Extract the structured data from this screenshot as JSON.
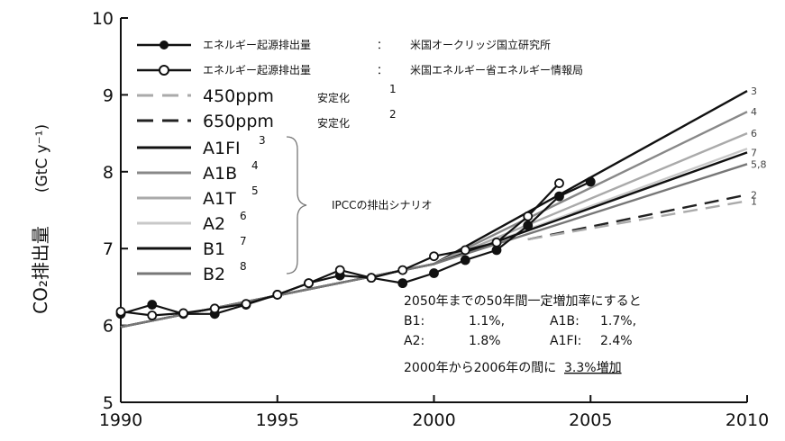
{
  "chart_data": {
    "type": "line",
    "ylabel_main": "CO₂排出量",
    "ylabel_unit": "(GtC y⁻¹)",
    "xlim": [
      1990,
      2010
    ],
    "ylim": [
      5,
      10
    ],
    "xticks": [
      1990,
      1995,
      2000,
      2005,
      2010
    ],
    "yticks": [
      5,
      6,
      7,
      8,
      9,
      10
    ],
    "legend": {
      "observed": [
        {
          "marker": "filled",
          "label": "エネルギー起源排出量",
          "colon": "：",
          "source": "米国オークリッジ国立研究所"
        },
        {
          "marker": "open",
          "label": "エネルギー起源排出量",
          "colon": "：",
          "source": "米国エネルギー省エネルギー情報局"
        }
      ],
      "stabilization": [
        {
          "label": "450ppm",
          "suffix": "安定化",
          "note": "1",
          "color": "#aaaaaa"
        },
        {
          "label": "650ppm",
          "suffix": "安定化",
          "note": "2",
          "color": "#222222"
        }
      ],
      "scenarios": [
        {
          "label": "A1FI",
          "note": "3",
          "color": "#111111"
        },
        {
          "label": "A1B",
          "note": "4",
          "color": "#888888"
        },
        {
          "label": "A1T",
          "note": "5",
          "color": "#aaaaaa"
        },
        {
          "label": "A2",
          "note": "6",
          "color": "#c8c8c8"
        },
        {
          "label": "B1",
          "note": "7",
          "color": "#111111"
        },
        {
          "label": "B2",
          "note": "8",
          "color": "#777777"
        }
      ],
      "scenario_group_label": "IPCCの排出シナリオ"
    },
    "annotation": {
      "line1": "2050年までの50年間一定増加率にすると",
      "rates": [
        {
          "name": "B1:",
          "value": "1.1%,"
        },
        {
          "name": "A1B:",
          "value": "1.7%,"
        },
        {
          "name": "A2:",
          "value": "1.8%"
        },
        {
          "name": "A1FI:",
          "value": "2.4%"
        }
      ],
      "line3_prefix": "2000年から2006年の間に",
      "line3_highlight": "3.3%増加"
    },
    "series": [
      {
        "name": "エネルギー起源排出量：米国オークリッジ国立研究所",
        "marker": "filled",
        "color": "#111111",
        "x": [
          1990,
          1991,
          1992,
          1993,
          1994,
          1995,
          1996,
          1997,
          1998,
          1999,
          2000,
          2001,
          2002,
          2003,
          2004,
          2005
        ],
        "y": [
          6.15,
          6.27,
          6.15,
          6.15,
          6.27,
          6.4,
          6.55,
          6.65,
          6.62,
          6.55,
          6.68,
          6.85,
          6.98,
          7.3,
          7.68,
          7.87
        ]
      },
      {
        "name": "エネルギー起源排出量：米国エネルギー省エネルギー情報局",
        "marker": "open",
        "color": "#111111",
        "x": [
          1990,
          1991,
          1992,
          1993,
          1994,
          1995,
          1996,
          1997,
          1998,
          1999,
          2000,
          2001,
          2002,
          2003,
          2004
        ],
        "y": [
          6.18,
          6.13,
          6.16,
          6.22,
          6.28,
          6.4,
          6.55,
          6.72,
          6.62,
          6.72,
          6.9,
          6.98,
          7.08,
          7.42,
          7.85
        ]
      },
      {
        "name": "A1FI",
        "end_label": "3",
        "color": "#111111",
        "x": [
          1990,
          2000,
          2010
        ],
        "y": [
          5.98,
          6.8,
          9.05
        ]
      },
      {
        "name": "A1B",
        "end_label": "4",
        "color": "#888888",
        "x": [
          1990,
          2000,
          2010
        ],
        "y": [
          5.98,
          6.8,
          8.78
        ]
      },
      {
        "name": "A1T",
        "end_label": "6",
        "color": "#aaaaaa",
        "x": [
          1990,
          2000,
          2010
        ],
        "y": [
          5.98,
          6.8,
          8.5
        ]
      },
      {
        "name": "A2",
        "end_label": "",
        "color": "#c8c8c8",
        "x": [
          1990,
          2000,
          2010
        ],
        "y": [
          5.98,
          6.8,
          8.3
        ]
      },
      {
        "name": "B1",
        "end_label": "7",
        "color": "#111111",
        "x": [
          1990,
          2000,
          2010
        ],
        "y": [
          5.98,
          6.8,
          8.25
        ]
      },
      {
        "name": "B2",
        "end_label": "5,8",
        "color": "#777777",
        "x": [
          1990,
          2000,
          2010
        ],
        "y": [
          5.98,
          6.8,
          8.1
        ]
      },
      {
        "name": "650ppm",
        "end_label": "2",
        "dashed": true,
        "color": "#222222",
        "x": [
          2003,
          2010
        ],
        "y": [
          7.12,
          7.7
        ]
      },
      {
        "name": "450ppm",
        "end_label": "1",
        "dashed": true,
        "color": "#aaaaaa",
        "x": [
          2003,
          2010
        ],
        "y": [
          7.12,
          7.62
        ]
      }
    ]
  }
}
